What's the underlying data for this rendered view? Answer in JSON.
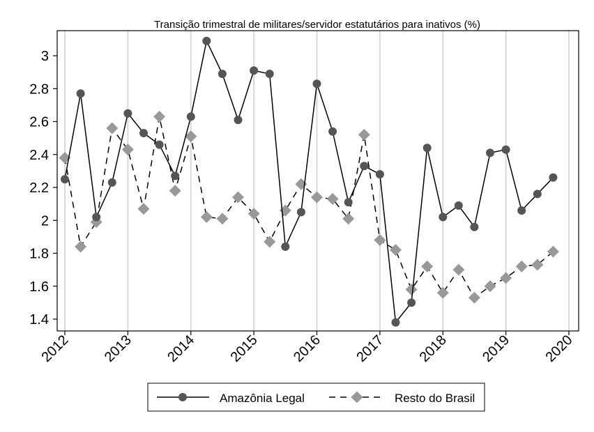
{
  "chart_data": {
    "type": "line",
    "title": "Transição trimestral de militares/servidor estatutários para inativos (%)",
    "xlabel": "",
    "ylabel": "",
    "xlim": [
      2012,
      2020
    ],
    "ylim": [
      1.35,
      3.15
    ],
    "x_ticks": [
      "2012",
      "2013",
      "2014",
      "2015",
      "2016",
      "2017",
      "2018",
      "2019",
      "2020"
    ],
    "y_ticks": [
      "1.4",
      "1.6",
      "1.8",
      "2",
      "2.2",
      "2.4",
      "2.6",
      "2.8",
      "3"
    ],
    "grid": "vertical",
    "legend_position": "bottom",
    "x": [
      2012.0,
      2012.25,
      2012.5,
      2012.75,
      2013.0,
      2013.25,
      2013.5,
      2013.75,
      2014.0,
      2014.25,
      2014.5,
      2014.75,
      2015.0,
      2015.25,
      2015.5,
      2015.75,
      2016.0,
      2016.25,
      2016.5,
      2016.75,
      2017.0,
      2017.25,
      2017.5,
      2017.75,
      2018.0,
      2018.25,
      2018.5,
      2018.75,
      2019.0,
      2019.25,
      2019.5,
      2019.75
    ],
    "series": [
      {
        "name": "Amazônia Legal",
        "color": "#555555",
        "line": "solid",
        "marker": "circle",
        "values": [
          2.25,
          2.77,
          2.02,
          2.23,
          2.65,
          2.53,
          2.46,
          2.27,
          2.63,
          3.09,
          2.89,
          2.61,
          2.91,
          2.89,
          1.84,
          2.05,
          2.83,
          2.54,
          2.11,
          2.33,
          2.28,
          1.38,
          1.5,
          2.44,
          2.02,
          2.09,
          1.96,
          2.41,
          2.43,
          2.06,
          2.16,
          2.26
        ]
      },
      {
        "name": "Resto do Brasil",
        "color": "#999999",
        "line": "dashed",
        "marker": "diamond",
        "values": [
          2.38,
          1.84,
          1.99,
          2.56,
          2.43,
          2.07,
          2.63,
          2.18,
          2.51,
          2.02,
          2.01,
          2.14,
          2.04,
          1.87,
          2.06,
          2.22,
          2.14,
          2.13,
          2.01,
          2.52,
          1.88,
          1.82,
          1.58,
          1.72,
          1.56,
          1.7,
          1.53,
          1.6,
          1.65,
          1.72,
          1.73,
          1.81
        ]
      }
    ]
  }
}
